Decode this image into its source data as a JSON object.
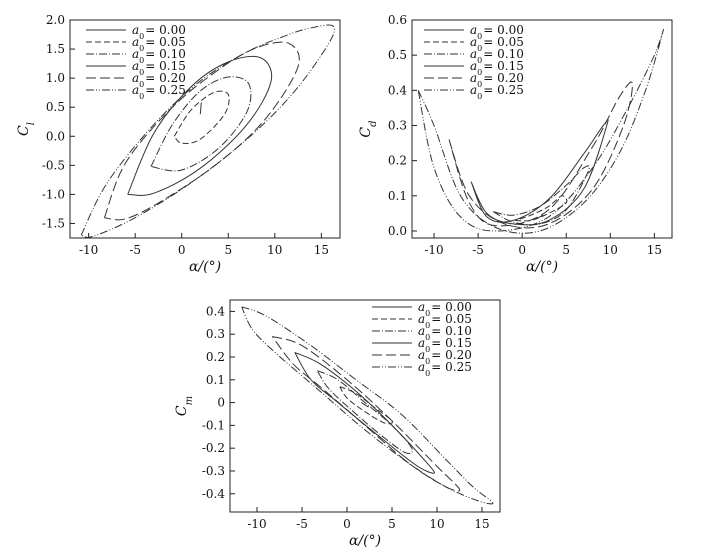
{
  "chart_data": [
    {
      "id": "cl",
      "type": "line",
      "xlabel": "α/(°)",
      "ylabel": "C_l",
      "ylabel_main": "C",
      "ylabel_sub": "l",
      "xlim": [
        -12,
        17
      ],
      "ylim": [
        -1.75,
        2.0
      ],
      "xticks": [
        -10,
        -5,
        0,
        5,
        10,
        15
      ],
      "yticks": [
        -1.5,
        -1.0,
        -0.5,
        0.0,
        0.5,
        1.0,
        1.5,
        2.0
      ],
      "ytick_labels": [
        "-1.5",
        "-1.0",
        "-0.5",
        "0.0",
        "0.5",
        "1.0",
        "1.5",
        "2.0"
      ],
      "legend_position": "top-left",
      "series": [
        {
          "name": "a0 = 0.00",
          "amplitude": 0.0,
          "dash": "",
          "points": [
            [
              2,
              0.38
            ],
            [
              2.05,
              0.48
            ],
            [
              2.1,
              0.58
            ]
          ]
        },
        {
          "name": "a0 = 0.05",
          "amplitude": 0.05,
          "dash": "6,3",
          "points": [
            [
              -0.8,
              0.0
            ],
            [
              1.0,
              0.45
            ],
            [
              3.4,
              0.75
            ],
            [
              5.0,
              0.72
            ],
            [
              4.6,
              0.38
            ],
            [
              2.0,
              -0.05
            ],
            [
              0.0,
              -0.12
            ],
            [
              -0.8,
              0.0
            ]
          ]
        },
        {
          "name": "a0 = 0.10",
          "amplitude": 0.1,
          "dash": "8,2,1,2",
          "points": [
            [
              -3.3,
              -0.52
            ],
            [
              -1.0,
              0.2
            ],
            [
              2.0,
              0.78
            ],
            [
              5.0,
              1.02
            ],
            [
              7.2,
              0.9
            ],
            [
              7.0,
              0.42
            ],
            [
              4.0,
              -0.2
            ],
            [
              0.0,
              -0.58
            ],
            [
              -3.3,
              -0.52
            ]
          ]
        },
        {
          "name": "a0 = 0.15",
          "amplitude": 0.15,
          "dash": "",
          "points": [
            [
              -5.8,
              -1.0
            ],
            [
              -3.0,
              0.05
            ],
            [
              1.0,
              0.85
            ],
            [
              5.0,
              1.28
            ],
            [
              8.5,
              1.35
            ],
            [
              9.6,
              0.95
            ],
            [
              7.0,
              0.2
            ],
            [
              2.0,
              -0.55
            ],
            [
              -3.0,
              -0.98
            ],
            [
              -5.8,
              -1.0
            ]
          ]
        },
        {
          "name": "a0 = 0.20",
          "amplitude": 0.2,
          "dash": "10,4",
          "points": [
            [
              -8.3,
              -1.4
            ],
            [
              -6.0,
              -0.45
            ],
            [
              -1.0,
              0.5
            ],
            [
              4.0,
              1.15
            ],
            [
              8.0,
              1.52
            ],
            [
              11.5,
              1.6
            ],
            [
              12.5,
              1.2
            ],
            [
              9.0,
              0.3
            ],
            [
              4.0,
              -0.45
            ],
            [
              -2.0,
              -1.1
            ],
            [
              -6.0,
              -1.42
            ],
            [
              -8.3,
              -1.4
            ]
          ]
        },
        {
          "name": "a0 = 0.25",
          "amplitude": 0.25,
          "dash": "8,2,1,2,1,2",
          "points": [
            [
              -10.8,
              -1.7
            ],
            [
              -8.0,
              -0.8
            ],
            [
              -3.0,
              0.2
            ],
            [
              2.0,
              0.95
            ],
            [
              7.0,
              1.45
            ],
            [
              11.0,
              1.72
            ],
            [
              13.5,
              1.85
            ],
            [
              16.2,
              1.9
            ],
            [
              15.8,
              1.6
            ],
            [
              12.0,
              0.75
            ],
            [
              7.0,
              -0.05
            ],
            [
              1.0,
              -0.8
            ],
            [
              -5.0,
              -1.4
            ],
            [
              -9.5,
              -1.72
            ],
            [
              -10.8,
              -1.7
            ]
          ]
        }
      ]
    },
    {
      "id": "cd",
      "type": "line",
      "xlabel": "α/(°)",
      "ylabel": "C_d",
      "ylabel_main": "C",
      "ylabel_sub": "d",
      "xlim": [
        -12.5,
        17
      ],
      "ylim": [
        -0.02,
        0.6
      ],
      "xticks": [
        -10,
        -5,
        0,
        5,
        10,
        15
      ],
      "yticks": [
        0.0,
        0.1,
        0.2,
        0.3,
        0.4,
        0.5,
        0.6
      ],
      "ytick_labels": [
        "0.0",
        "0.1",
        "0.2",
        "0.3",
        "0.4",
        "0.5",
        "0.6"
      ],
      "legend_position": "top-left",
      "series": [
        {
          "name": "a0 = 0.00",
          "amplitude": 0.0,
          "dash": "",
          "points": [
            [
              1.6,
              0.035
            ],
            [
              2.0,
              0.04
            ],
            [
              2.4,
              0.045
            ]
          ]
        },
        {
          "name": "a0 = 0.05",
          "amplitude": 0.05,
          "dash": "6,3",
          "points": [
            [
              -0.8,
              0.03
            ],
            [
              1.0,
              0.03
            ],
            [
              3.0,
              0.05
            ],
            [
              5.0,
              0.08
            ],
            [
              4.5,
              0.1
            ],
            [
              3.0,
              0.07
            ],
            [
              1.0,
              0.045
            ],
            [
              -0.8,
              0.03
            ]
          ]
        },
        {
          "name": "a0 = 0.10",
          "amplitude": 0.1,
          "dash": "8,2,1,2",
          "points": [
            [
              -3.3,
              0.055
            ],
            [
              -1.0,
              0.025
            ],
            [
              2.0,
              0.02
            ],
            [
              5.0,
              0.06
            ],
            [
              7.5,
              0.17
            ],
            [
              7.0,
              0.18
            ],
            [
              5.0,
              0.13
            ],
            [
              2.0,
              0.07
            ],
            [
              -1.0,
              0.045
            ],
            [
              -3.3,
              0.055
            ]
          ]
        },
        {
          "name": "a0 = 0.15",
          "amplitude": 0.15,
          "dash": "",
          "points": [
            [
              -5.8,
              0.14
            ],
            [
              -4.0,
              0.05
            ],
            [
              -1.0,
              0.02
            ],
            [
              3.0,
              0.03
            ],
            [
              7.0,
              0.12
            ],
            [
              9.6,
              0.3
            ],
            [
              9.2,
              0.3
            ],
            [
              7.0,
              0.22
            ],
            [
              3.0,
              0.09
            ],
            [
              -1.0,
              0.03
            ],
            [
              -4.0,
              0.04
            ],
            [
              -5.8,
              0.14
            ]
          ]
        },
        {
          "name": "a0 = 0.20",
          "amplitude": 0.2,
          "dash": "10,4",
          "points": [
            [
              -8.3,
              0.26
            ],
            [
              -6.0,
              0.1
            ],
            [
              -2.0,
              0.02
            ],
            [
              3.0,
              0.02
            ],
            [
              8.0,
              0.12
            ],
            [
              11.5,
              0.3
            ],
            [
              12.5,
              0.42
            ],
            [
              11.0,
              0.38
            ],
            [
              8.0,
              0.24
            ],
            [
              3.0,
              0.06
            ],
            [
              -3.0,
              0.015
            ],
            [
              -6.0,
              0.08
            ],
            [
              -8.3,
              0.26
            ]
          ]
        },
        {
          "name": "a0 = 0.25",
          "amplitude": 0.25,
          "dash": "8,2,1,2,1,2",
          "points": [
            [
              -11.8,
              0.4
            ],
            [
              -10.0,
              0.3
            ],
            [
              -7.0,
              0.1
            ],
            [
              -3.0,
              0.01
            ],
            [
              2.0,
              0.0
            ],
            [
              7.0,
              0.08
            ],
            [
              11.0,
              0.22
            ],
            [
              14.0,
              0.4
            ],
            [
              16.0,
              0.57
            ],
            [
              15.0,
              0.5
            ],
            [
              12.0,
              0.35
            ],
            [
              8.0,
              0.18
            ],
            [
              3.0,
              0.04
            ],
            [
              -3.0,
              0.0
            ],
            [
              -7.0,
              0.04
            ],
            [
              -10.0,
              0.18
            ],
            [
              -11.8,
              0.4
            ]
          ]
        }
      ]
    },
    {
      "id": "cm",
      "type": "line",
      "xlabel": "α/(°)",
      "ylabel": "C_m",
      "ylabel_main": "C",
      "ylabel_sub": "m",
      "xlim": [
        -13,
        17
      ],
      "ylim": [
        -0.48,
        0.45
      ],
      "xticks": [
        -10,
        -5,
        0,
        5,
        10,
        15
      ],
      "yticks": [
        -0.4,
        -0.3,
        -0.2,
        -0.1,
        0.0,
        0.1,
        0.2,
        0.3,
        0.4
      ],
      "ytick_labels": [
        "-0.4",
        "-0.3",
        "-0.2",
        "-0.1",
        "0",
        "0.1",
        "0.2",
        "0.3",
        "0.4"
      ],
      "legend_position": "top-right",
      "series": [
        {
          "name": "a0 = 0.00",
          "amplitude": 0.0,
          "dash": "",
          "points": [
            [
              1.6,
              0.0
            ],
            [
              2.0,
              -0.01
            ],
            [
              2.4,
              -0.02
            ]
          ]
        },
        {
          "name": "a0 = 0.05",
          "amplitude": 0.05,
          "dash": "6,3",
          "points": [
            [
              -0.8,
              0.07
            ],
            [
              1.0,
              0.04
            ],
            [
              3.0,
              -0.02
            ],
            [
              5.0,
              -0.08
            ],
            [
              4.2,
              -0.09
            ],
            [
              2.0,
              -0.04
            ],
            [
              0.0,
              0.02
            ],
            [
              -0.8,
              0.07
            ]
          ]
        },
        {
          "name": "a0 = 0.10",
          "amplitude": 0.1,
          "dash": "8,2,1,2",
          "points": [
            [
              -3.3,
              0.14
            ],
            [
              -1.0,
              0.1
            ],
            [
              2.0,
              0.0
            ],
            [
              5.0,
              -0.1
            ],
            [
              7.2,
              -0.2
            ],
            [
              6.5,
              -0.22
            ],
            [
              4.0,
              -0.15
            ],
            [
              1.0,
              -0.05
            ],
            [
              -2.0,
              0.06
            ],
            [
              -3.3,
              0.14
            ]
          ]
        },
        {
          "name": "a0 = 0.15",
          "amplitude": 0.15,
          "dash": "",
          "points": [
            [
              -5.8,
              0.22
            ],
            [
              -3.0,
              0.17
            ],
            [
              1.0,
              0.05
            ],
            [
              5.0,
              -0.1
            ],
            [
              9.0,
              -0.27
            ],
            [
              9.6,
              -0.31
            ],
            [
              7.5,
              -0.27
            ],
            [
              3.0,
              -0.13
            ],
            [
              -1.0,
              0.0
            ],
            [
              -4.0,
              0.1
            ],
            [
              -5.8,
              0.22
            ]
          ]
        },
        {
          "name": "a0 = 0.20",
          "amplitude": 0.2,
          "dash": "10,4",
          "points": [
            [
              -8.3,
              0.29
            ],
            [
              -5.0,
              0.25
            ],
            [
              0.0,
              0.1
            ],
            [
              5.0,
              -0.08
            ],
            [
              10.0,
              -0.28
            ],
            [
              12.5,
              -0.38
            ],
            [
              11.0,
              -0.37
            ],
            [
              7.0,
              -0.27
            ],
            [
              2.0,
              -0.1
            ],
            [
              -3.0,
              0.07
            ],
            [
              -6.0,
              0.17
            ],
            [
              -8.3,
              0.29
            ]
          ]
        },
        {
          "name": "a0 = 0.25",
          "amplitude": 0.25,
          "dash": "8,2,1,2,1,2",
          "points": [
            [
              -11.7,
              0.42
            ],
            [
              -9.0,
              0.38
            ],
            [
              -4.0,
              0.25
            ],
            [
              1.0,
              0.1
            ],
            [
              6.0,
              -0.05
            ],
            [
              11.0,
              -0.25
            ],
            [
              14.0,
              -0.37
            ],
            [
              16.2,
              -0.44
            ],
            [
              14.5,
              -0.43
            ],
            [
              11.0,
              -0.37
            ],
            [
              7.0,
              -0.27
            ],
            [
              2.0,
              -0.12
            ],
            [
              -3.0,
              0.05
            ],
            [
              -8.0,
              0.22
            ],
            [
              -10.5,
              0.32
            ],
            [
              -11.7,
              0.42
            ]
          ]
        }
      ]
    }
  ]
}
